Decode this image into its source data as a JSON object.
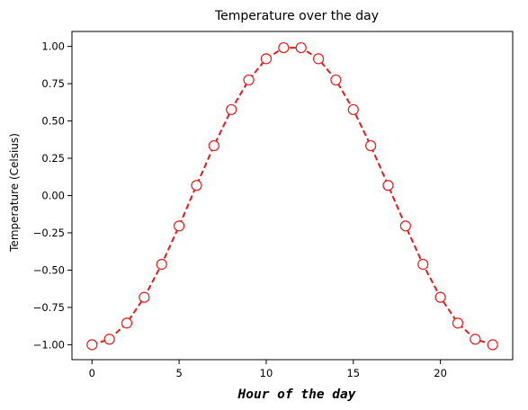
{
  "chart_data": {
    "type": "line",
    "title": "Temperature over the day",
    "xlabel": "Hour of the day",
    "ylabel": "Temperature (Celsius)",
    "xlim": [
      -1.15,
      24.15
    ],
    "ylim": [
      -1.1,
      1.1
    ],
    "xticks": [
      0,
      5,
      10,
      15,
      20
    ],
    "xtick_labels": [
      "0",
      "5",
      "10",
      "15",
      "20"
    ],
    "yticks": [
      1.0,
      0.75,
      0.5,
      0.25,
      0.0,
      -0.25,
      -0.5,
      -0.75,
      -1.0
    ],
    "ytick_labels": [
      "1.00",
      "0.75",
      "0.50",
      "0.25",
      "0.00",
      "−0.25",
      "−0.50",
      "−0.75",
      "−1.00"
    ],
    "grid": false,
    "series": [
      {
        "color": "#e41a1c",
        "line_style": "dashed",
        "marker": "circle-open",
        "x": [
          0,
          1,
          2,
          3,
          4,
          5,
          6,
          7,
          8,
          9,
          10,
          11,
          12,
          13,
          14,
          15,
          16,
          17,
          18,
          19,
          20,
          21,
          22,
          23
        ],
        "y": [
          -1.0,
          -0.963,
          -0.855,
          -0.682,
          -0.461,
          -0.204,
          0.068,
          0.334,
          0.576,
          0.775,
          0.917,
          0.991,
          0.991,
          0.917,
          0.775,
          0.576,
          0.334,
          0.068,
          -0.204,
          -0.461,
          -0.682,
          -0.855,
          -0.963,
          -1.0
        ]
      }
    ]
  }
}
